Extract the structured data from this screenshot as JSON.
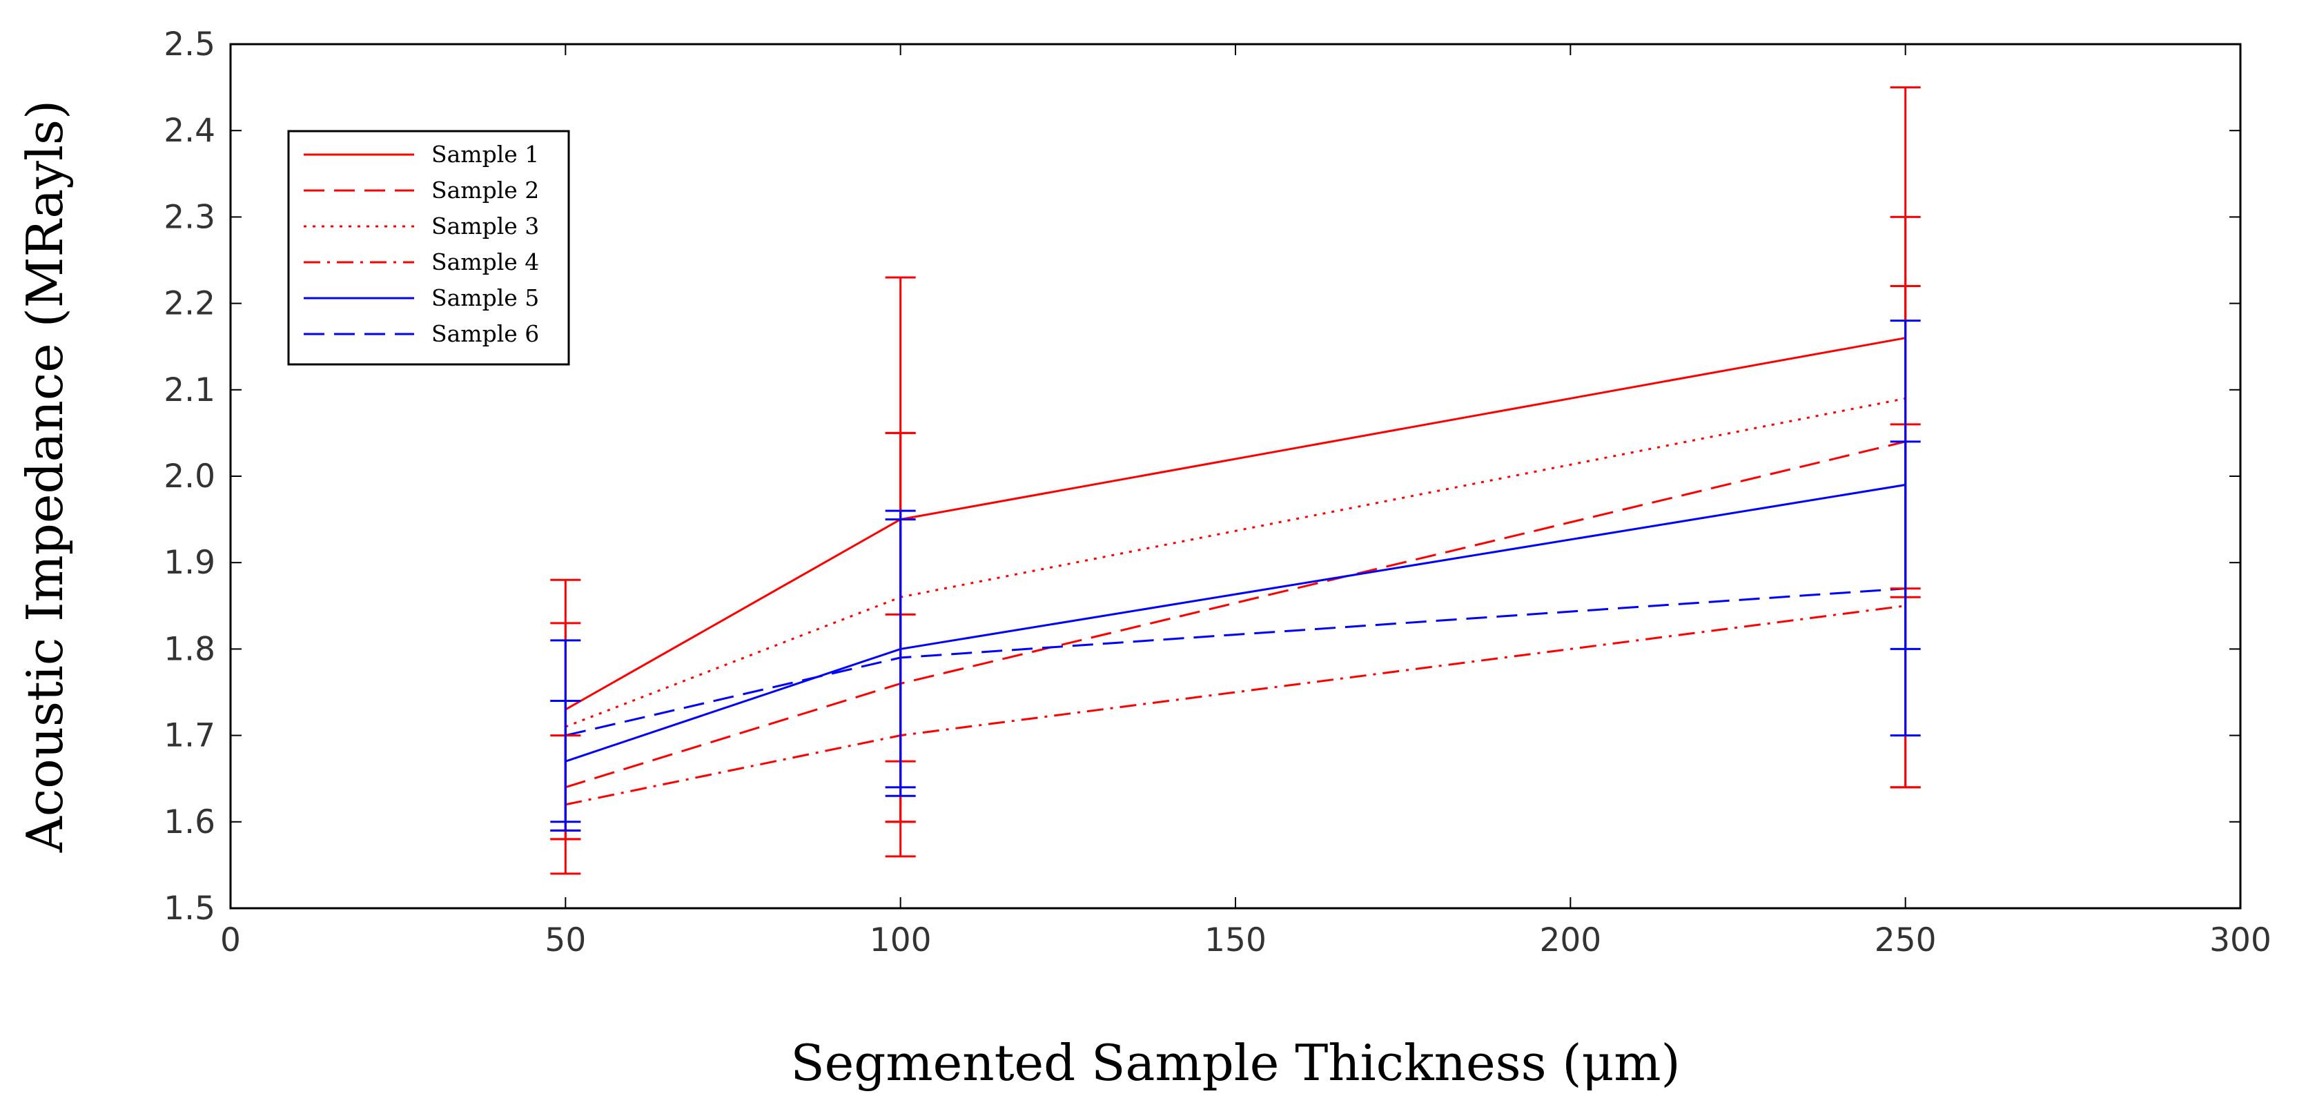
{
  "chart_data": {
    "type": "line",
    "title": "",
    "xlabel": "Segmented Sample Thickness (μm)",
    "ylabel": "Acoustic Impedance (MRayls)",
    "xlim": [
      0,
      300
    ],
    "ylim": [
      1.5,
      2.5
    ],
    "xticks": [
      "0",
      "50",
      "100",
      "150",
      "200",
      "250",
      "300"
    ],
    "yticks": [
      "1.5",
      "1.6",
      "1.7",
      "1.8",
      "1.9",
      "2.0",
      "2.1",
      "2.2",
      "2.3",
      "2.4",
      "2.5"
    ],
    "grid": false,
    "legend_position": "top-left",
    "x": [
      50,
      100,
      250
    ],
    "series": [
      {
        "name": "Sample 1",
        "color": "#ff0000",
        "style": "solid",
        "values": [
          1.73,
          1.95,
          2.16
        ],
        "err_low": [
          1.54,
          1.56,
          1.64
        ],
        "err_high": [
          1.88,
          2.23,
          2.45
        ]
      },
      {
        "name": "Sample 2",
        "color": "#ff0000",
        "style": "dashed",
        "values": [
          1.64,
          1.76,
          2.04
        ],
        "err_low": [
          1.58,
          1.6,
          1.86
        ],
        "err_high": [
          1.83,
          2.05,
          2.3
        ]
      },
      {
        "name": "Sample 3",
        "color": "#ff0000",
        "style": "dotted",
        "values": [
          1.71,
          1.86,
          2.09
        ],
        "err_low": [
          1.59,
          1.67,
          1.87
        ],
        "err_high": [
          1.74,
          2.05,
          2.22
        ]
      },
      {
        "name": "Sample 4",
        "color": "#ff0000",
        "style": "dashdot",
        "values": [
          1.62,
          1.7,
          1.85
        ],
        "err_low": [
          1.58,
          1.6,
          1.64
        ],
        "err_high": [
          1.7,
          1.84,
          2.06
        ]
      },
      {
        "name": "Sample 5",
        "color": "#0000ff",
        "style": "solid",
        "values": [
          1.67,
          1.8,
          1.99
        ],
        "err_low": [
          1.59,
          1.63,
          1.8
        ],
        "err_high": [
          1.81,
          1.96,
          2.18
        ]
      },
      {
        "name": "Sample 6",
        "color": "#0000ff",
        "style": "dashed",
        "values": [
          1.7,
          1.79,
          1.87
        ],
        "err_low": [
          1.6,
          1.64,
          1.7
        ],
        "err_high": [
          1.74,
          1.95,
          2.04
        ]
      }
    ]
  }
}
